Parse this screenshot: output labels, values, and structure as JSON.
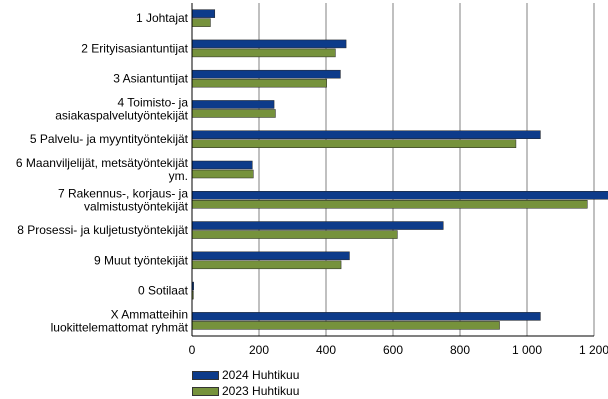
{
  "chart_data": {
    "type": "bar",
    "orientation": "horizontal",
    "categories": [
      "1 Johtajat",
      "2 Erityisasiantuntijat",
      "3 Asiantuntijat",
      "4 Toimisto- ja\nasiakaspalvelutyöntekijät",
      "5 Palvelu- ja myyntityöntekijät",
      "6 Maanviljelijät, metsätyöntekijät\nym.",
      "7 Rakennus-, korjaus- ja\nvalmistustyöntekijät",
      "8 Prosessi- ja kuljetustyöntekijät",
      "9 Muut työntekijät",
      "0 Sotilaat",
      "X Ammatteihin\nluokittelemattomat ryhmät"
    ],
    "series": [
      {
        "name": "2024 Huhtikuu",
        "color": "#0d3b8a",
        "values": [
          68,
          460,
          443,
          245,
          1040,
          180,
          1250,
          750,
          470,
          5,
          1040
        ]
      },
      {
        "name": "2023 Huhtikuu",
        "color": "#76923c",
        "values": [
          55,
          428,
          402,
          249,
          967,
          183,
          1180,
          613,
          445,
          4,
          918
        ]
      }
    ],
    "xlim": [
      0,
      1200
    ],
    "xticks": [
      0,
      200,
      400,
      600,
      800,
      1000,
      1200
    ],
    "xtick_labels": [
      "0",
      "200",
      "400",
      "600",
      "800",
      "1 000",
      "1 200"
    ],
    "grid": "vertical",
    "legend_position": "bottom-left"
  }
}
